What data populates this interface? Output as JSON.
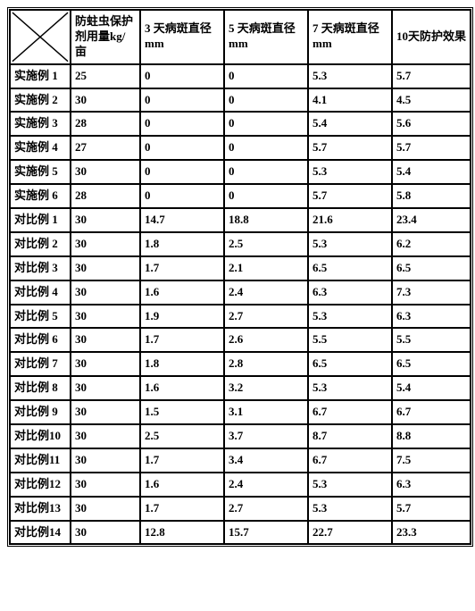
{
  "table": {
    "columns": [
      "",
      "防蛀虫保护剂用量kg/亩",
      "3 天病斑直径mm",
      "5 天病斑直径mm",
      "7 天病斑直径mm",
      "10天防护效果"
    ],
    "rows": [
      [
        "实施例 1",
        "25",
        "0",
        "0",
        "5.3",
        "5.7"
      ],
      [
        "实施例 2",
        "30",
        "0",
        "0",
        "4.1",
        "4.5"
      ],
      [
        "实施例 3",
        "28",
        "0",
        "0",
        "5.4",
        "5.6"
      ],
      [
        "实施例 4",
        "27",
        "0",
        "0",
        "5.7",
        "5.7"
      ],
      [
        "实施例 5",
        "30",
        "0",
        "0",
        "5.3",
        "5.4"
      ],
      [
        "实施例 6",
        "28",
        "0",
        "0",
        "5.7",
        "5.8"
      ],
      [
        "对比例 1",
        "30",
        "14.7",
        "18.8",
        "21.6",
        "23.4"
      ],
      [
        "对比例 2",
        "30",
        "1.8",
        "2.5",
        "5.3",
        "6.2"
      ],
      [
        "对比例 3",
        "30",
        "1.7",
        "2.1",
        "6.5",
        "6.5"
      ],
      [
        "对比例 4",
        "30",
        "1.6",
        "2.4",
        "6.3",
        "7.3"
      ],
      [
        "对比例 5",
        "30",
        "1.9",
        "2.7",
        "5.3",
        "6.3"
      ],
      [
        "对比例 6",
        "30",
        "1.7",
        "2.6",
        "5.5",
        "5.5"
      ],
      [
        "对比例 7",
        "30",
        "1.8",
        "2.8",
        "6.5",
        "6.5"
      ],
      [
        "对比例 8",
        "30",
        "1.6",
        "3.2",
        "5.3",
        "5.4"
      ],
      [
        "对比例 9",
        "30",
        "1.5",
        "3.1",
        "6.7",
        "6.7"
      ],
      [
        "对比例10",
        "30",
        "2.5",
        "3.7",
        "8.7",
        "8.8"
      ],
      [
        "对比例11",
        "30",
        "1.7",
        "3.4",
        "6.7",
        "7.5"
      ],
      [
        "对比例12",
        "30",
        "1.6",
        "2.4",
        "5.3",
        "6.3"
      ],
      [
        "对比例13",
        "30",
        "1.7",
        "2.7",
        "5.3",
        "5.7"
      ],
      [
        "对比例14",
        "30",
        "12.8",
        "15.7",
        "22.7",
        "23.3"
      ]
    ]
  },
  "style": {
    "font_family": "SimSun",
    "font_size_pt": 10,
    "border_color": "#000000",
    "background_color": "#ffffff"
  }
}
